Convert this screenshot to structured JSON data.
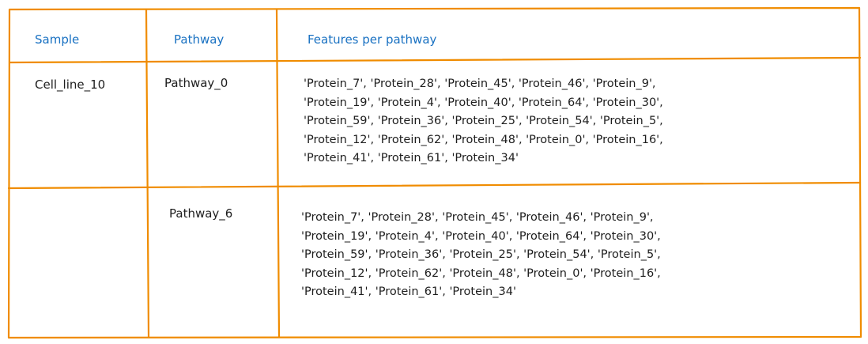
{
  "colors": {
    "border": "#f08c00",
    "header_text": "#1971c2",
    "body_text": "#1e1e1e"
  },
  "table": {
    "headers": {
      "sample": "Sample",
      "pathway": "Pathway",
      "features": "Features per pathway"
    },
    "rows": [
      {
        "sample": "Cell_line_10",
        "pathway": "Pathway_0",
        "feature_lines": [
          "'Protein_7', 'Protein_28', 'Protein_45', 'Protein_46', 'Protein_9',",
          "'Protein_19', 'Protein_4', 'Protein_40', 'Protein_64', 'Protein_30',",
          "'Protein_59', 'Protein_36', 'Protein_25', 'Protein_54', 'Protein_5',",
          "'Protein_12', 'Protein_62', 'Protein_48', 'Protein_0', 'Protein_16',",
          "'Protein_41', 'Protein_61', 'Protein_34'"
        ]
      },
      {
        "sample": "",
        "pathway": "Pathway_6",
        "feature_lines": [
          "'Protein_7', 'Protein_28', 'Protein_45', 'Protein_46', 'Protein_9',",
          "'Protein_19', 'Protein_4', 'Protein_40', 'Protein_64', 'Protein_30',",
          "'Protein_59', 'Protein_36', 'Protein_25', 'Protein_54', 'Protein_5',",
          "'Protein_12', 'Protein_62', 'Protein_48', 'Protein_0', 'Protein_16',",
          "'Protein_41', 'Protein_61', 'Protein_34'"
        ]
      }
    ]
  }
}
